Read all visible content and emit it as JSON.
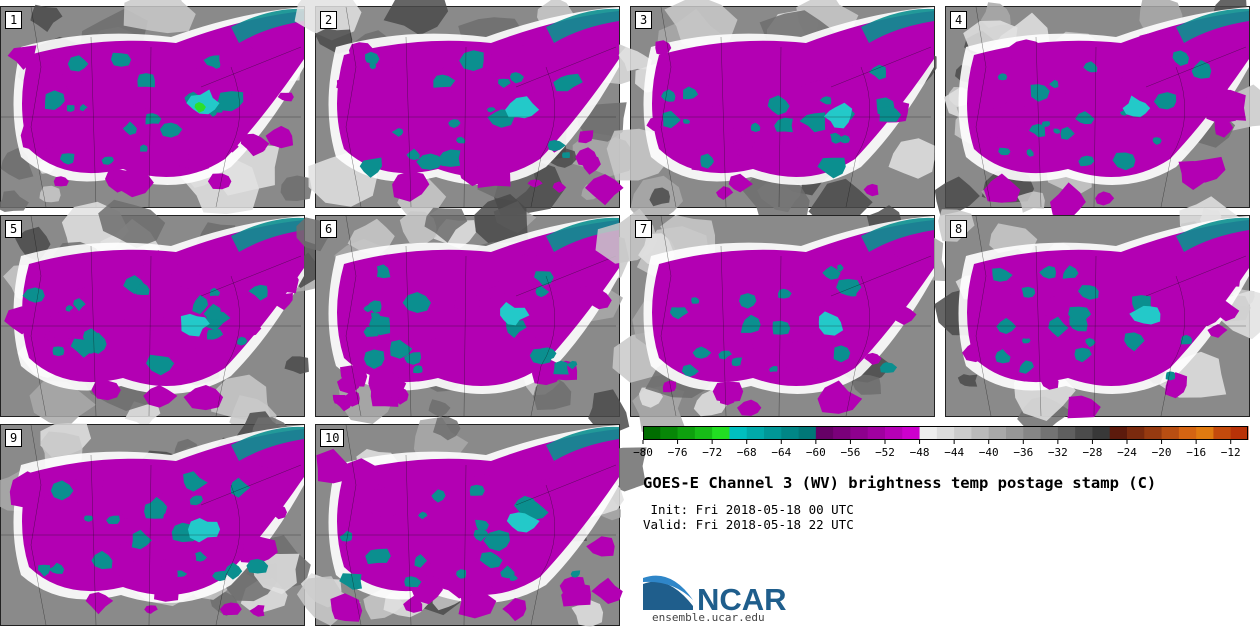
{
  "panels": [
    {
      "label": "1"
    },
    {
      "label": "2"
    },
    {
      "label": "3"
    },
    {
      "label": "4"
    },
    {
      "label": "5"
    },
    {
      "label": "6"
    },
    {
      "label": "7"
    },
    {
      "label": "8"
    },
    {
      "label": "9"
    },
    {
      "label": "10"
    }
  ],
  "title": "GOES-E Channel 3 (WV) brightness temp postage stamp (C)",
  "init": " Init: Fri 2018-05-18 00 UTC",
  "valid": "Valid: Fri 2018-05-18 22 UTC",
  "logo_text": "NCAR",
  "site": "ensemble.ucar.edu",
  "colorbar": {
    "min": -80,
    "max": -10,
    "step": 2,
    "ticks": [
      -80,
      -76,
      -72,
      -68,
      -64,
      -60,
      -56,
      -52,
      -48,
      -44,
      -40,
      -36,
      -32,
      -28,
      -24,
      -20,
      -16,
      -12
    ],
    "colors": [
      "#006d00",
      "#078707",
      "#0ea00e",
      "#17bb17",
      "#22dd22",
      "#00bfbf",
      "#00aaaa",
      "#009797",
      "#008686",
      "#007777",
      "#660066",
      "#7a007a",
      "#8e008e",
      "#a000a0",
      "#b600b6",
      "#cc00cc",
      "#ededed",
      "#dcdcdc",
      "#cbcbcb",
      "#bababa",
      "#a8a8a8",
      "#979797",
      "#868686",
      "#737373",
      "#5f5f5f",
      "#4b4b4b",
      "#383838",
      "#5c1a0c",
      "#7a2a0e",
      "#963a10",
      "#b84e12",
      "#d46412",
      "#e07a10",
      "#c44a0c",
      "#b83208"
    ]
  },
  "colors": {
    "magenta": "#b300b3",
    "teal": "#0b8f8f",
    "cyan": "#23c9c9",
    "green": "#2be02b",
    "gray_dark": "#4a4a4a",
    "gray_mid": "#8a8a8a",
    "gray_light": "#c9c9c9",
    "ncar_blue": "#1f5e8c"
  }
}
